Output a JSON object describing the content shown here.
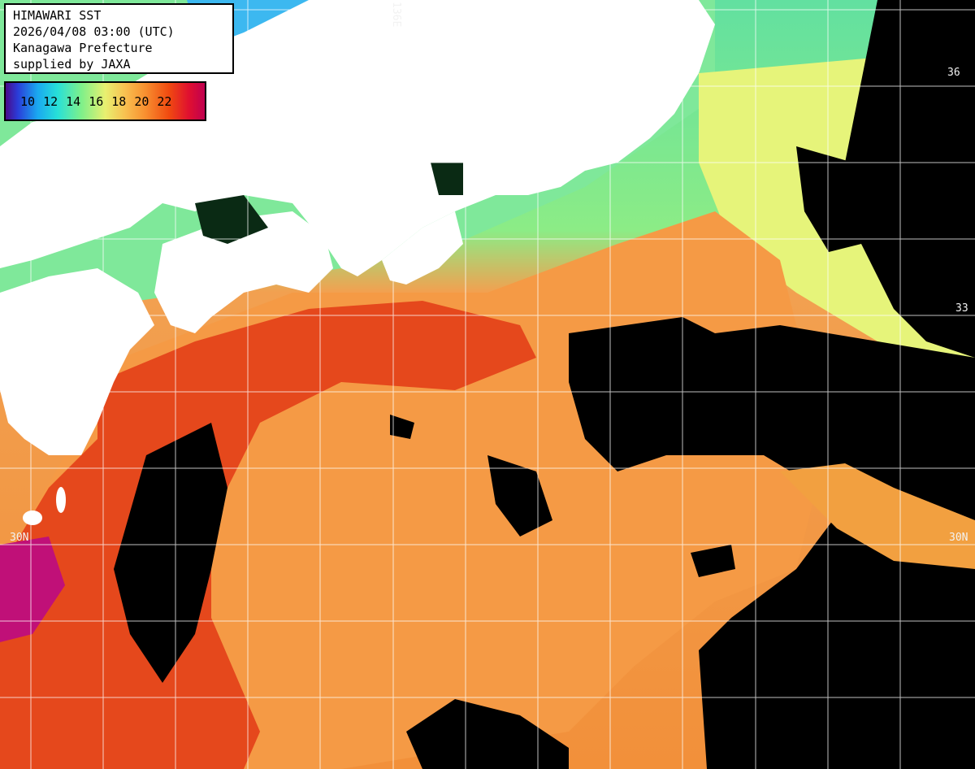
{
  "info_box": {
    "line1": "HIMAWARI SST",
    "line2": "2026/04/08 03:00 (UTC)",
    "line3": "Kanagawa Prefecture",
    "line4": "supplied by JAXA"
  },
  "legend": {
    "ticks": [
      "10",
      "12",
      "14",
      "16",
      "18",
      "20",
      "22"
    ],
    "colors": [
      "#4a0a8a",
      "#2a3cd8",
      "#1aa8f0",
      "#27e0d8",
      "#7ef08a",
      "#e8f070",
      "#f8c050",
      "#f89030",
      "#f04a10",
      "#e01030",
      "#c00050"
    ]
  },
  "grid_labels": {
    "lon_136e": "136E",
    "lat_30n_left": "30N",
    "lat_30n_right": "30N",
    "lat_36_right": "36",
    "lat_33_right": "33"
  },
  "colors": {
    "land": "#ffffff",
    "cloud": "#000000",
    "warm_core": "#e8401a",
    "warm_water": "#f2903a",
    "cool_water": "#7ee890",
    "gridline": "#ffffff"
  }
}
